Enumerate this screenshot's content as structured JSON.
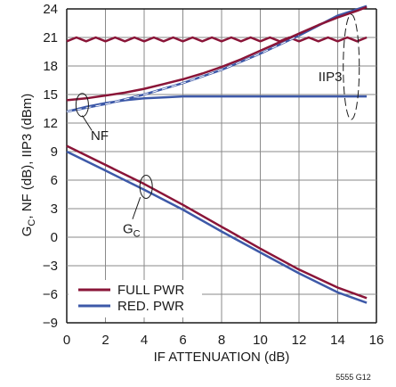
{
  "chart_data": {
    "type": "line",
    "xlabel": "IF ATTENUATION (dB)",
    "ylabel_parts": [
      "G",
      "C",
      ", NF (dB), IIP3 (dBm)"
    ],
    "xlim": [
      0,
      16
    ],
    "ylim": [
      -9,
      24
    ],
    "xticks": [
      0,
      2,
      4,
      6,
      8,
      10,
      12,
      14,
      16
    ],
    "yticks": [
      -9,
      -6,
      -3,
      0,
      3,
      6,
      9,
      12,
      15,
      18,
      21,
      24
    ],
    "grid": true,
    "legend_position": "bottom-left",
    "figure_id": "5555 G12",
    "annotations": {
      "nf": "NF",
      "iip3": "IIP3",
      "gc_main": "G",
      "gc_sub": "C"
    },
    "series": [
      {
        "name": "FULL PWR",
        "color": "#8a1538",
        "metric": "IIP3",
        "x": [
          0,
          0.5,
          1,
          1.5,
          2,
          2.5,
          3,
          3.5,
          4,
          4.5,
          5,
          5.5,
          6,
          6.5,
          7,
          7.5,
          8,
          8.5,
          9,
          9.5,
          10,
          10.5,
          11,
          11.5,
          12,
          12.5,
          13,
          13.5,
          14,
          14.5,
          15,
          15.5
        ],
        "y": [
          20.6,
          21.0,
          20.6,
          21.0,
          20.6,
          21.0,
          20.6,
          21.0,
          20.6,
          21.0,
          20.6,
          21.0,
          20.6,
          21.0,
          20.6,
          21.0,
          20.6,
          21.0,
          20.6,
          21.0,
          20.6,
          21.0,
          20.6,
          21.0,
          20.6,
          21.0,
          20.6,
          21.0,
          20.6,
          21.0,
          20.6,
          21.0
        ]
      },
      {
        "name": "RED. PWR",
        "color": "#3d59a8",
        "metric": "IIP3",
        "x": [
          0,
          2,
          4,
          6,
          8,
          10,
          12,
          14,
          15.5
        ],
        "y": [
          13.2,
          14.0,
          15.0,
          16.2,
          17.6,
          19.3,
          21.2,
          23.3,
          24.3
        ]
      },
      {
        "name": "FULL PWR",
        "color": "#8a1538",
        "metric": "NF",
        "x": [
          0,
          1,
          2,
          3,
          4,
          5,
          6,
          7,
          8,
          9,
          10,
          11,
          12,
          13,
          14,
          15,
          15.5
        ],
        "y": [
          14.4,
          14.6,
          14.9,
          15.2,
          15.6,
          16.1,
          16.6,
          17.2,
          17.9,
          18.7,
          19.6,
          20.5,
          21.4,
          22.3,
          23.1,
          23.8,
          24.2
        ]
      },
      {
        "name": "RED. PWR",
        "color": "#3d59a8",
        "metric": "NF",
        "x": [
          0,
          1,
          2,
          3,
          4,
          5,
          6,
          8,
          10,
          12,
          14,
          15.5
        ],
        "y": [
          13.2,
          13.7,
          14.1,
          14.4,
          14.6,
          14.7,
          14.8,
          14.8,
          14.8,
          14.8,
          14.8,
          14.8
        ]
      },
      {
        "name": "FULL PWR",
        "color": "#8a1538",
        "metric": "GC",
        "x": [
          0,
          2,
          4,
          6,
          8,
          10,
          12,
          14,
          15.5
        ],
        "y": [
          9.6,
          7.6,
          5.6,
          3.4,
          1.1,
          -1.2,
          -3.4,
          -5.3,
          -6.4
        ]
      },
      {
        "name": "RED. PWR",
        "color": "#3d59a8",
        "metric": "GC",
        "x": [
          0,
          2,
          4,
          6,
          8,
          10,
          12,
          14,
          15.5
        ],
        "y": [
          9.0,
          7.0,
          5.0,
          2.9,
          0.6,
          -1.6,
          -3.8,
          -5.8,
          -6.9
        ]
      }
    ],
    "legend": [
      {
        "label": "FULL PWR",
        "color": "#8a1538"
      },
      {
        "label": "RED. PWR",
        "color": "#3d59a8"
      }
    ]
  }
}
